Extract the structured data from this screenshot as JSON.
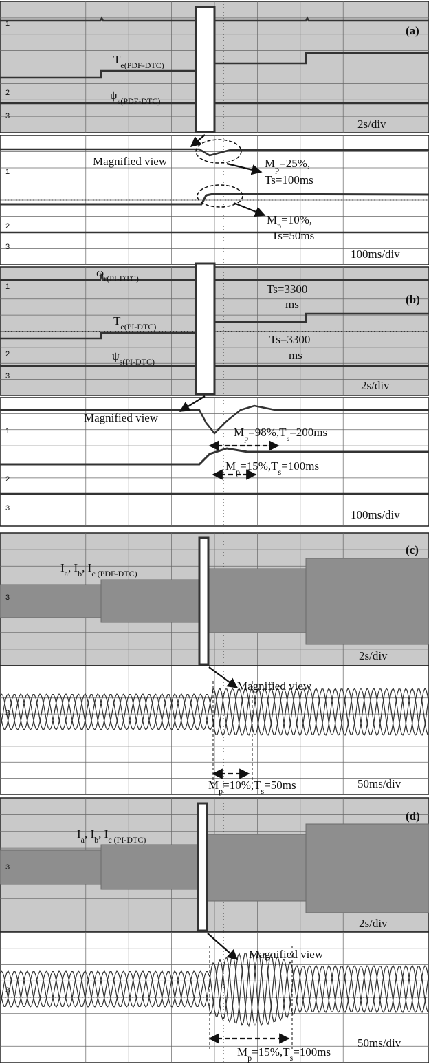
{
  "panels": [
    {
      "tag": "(a)",
      "top": {
        "channels": [
          "1",
          "2",
          "3"
        ],
        "scale": "2s/div",
        "labels": [
          [
            {
              "text": "T"
            },
            {
              "text": "e(PDF-DTC)",
              "sub": true
            }
          ],
          [
            {
              "text": "ψ"
            },
            {
              "text": "s(PDF-DTC)",
              "sub": true
            }
          ]
        ]
      },
      "bottom": {
        "channels": [
          "1",
          "2",
          "3"
        ],
        "scale": "100ms/div",
        "labels": [
          [
            {
              "text": "Magnified view"
            }
          ],
          [
            {
              "text": "M"
            },
            {
              "text": "p",
              "sub": true
            },
            {
              "text": "=25%,"
            }
          ],
          [
            {
              "text": "Ts=100ms"
            }
          ],
          [
            {
              "text": "M"
            },
            {
              "text": "p",
              "sub": true
            },
            {
              "text": "=10%,"
            }
          ],
          [
            {
              "text": "Ts=50ms"
            }
          ]
        ]
      }
    },
    {
      "tag": "(b)",
      "top": {
        "channels": [
          "1",
          "2",
          "3"
        ],
        "scale": "2s/div",
        "labels": [
          [
            {
              "text": "ω"
            },
            {
              "text": "r(PI-DTC)",
              "sub": true
            }
          ],
          [
            {
              "text": "Ts=3300"
            }
          ],
          [
            {
              "text": "ms"
            }
          ],
          [
            {
              "text": "T"
            },
            {
              "text": "e(PI-DTC)",
              "sub": true
            }
          ],
          [
            {
              "text": "Ts=3300"
            }
          ],
          [
            {
              "text": "ms"
            }
          ],
          [
            {
              "text": "ψ"
            },
            {
              "text": "s(PI-DTC)",
              "sub": true
            }
          ]
        ]
      },
      "bottom": {
        "channels": [
          "1",
          "2",
          "3"
        ],
        "scale": "100ms/div",
        "labels": [
          [
            {
              "text": "Magnified view"
            }
          ],
          [
            {
              "text": "M"
            },
            {
              "text": "p",
              "sub": true
            },
            {
              "text": "=98%,T"
            },
            {
              "text": "s",
              "sub": true
            },
            {
              "text": "=200ms"
            }
          ],
          [
            {
              "text": "M"
            },
            {
              "text": "p",
              "sub": true
            },
            {
              "text": "=15%,T"
            },
            {
              "text": "s",
              "sub": true
            },
            {
              "text": "=100ms"
            }
          ]
        ]
      }
    },
    {
      "tag": "(c)",
      "top": {
        "channels": [
          "3"
        ],
        "scale": "2s/div",
        "labels": [
          [
            {
              "text": "I"
            },
            {
              "text": "a",
              "sub": true
            },
            {
              "text": ", I"
            },
            {
              "text": "b",
              "sub": true
            },
            {
              "text": ", I"
            },
            {
              "text": "c (PDF-DTC)",
              "sub": true
            }
          ]
        ]
      },
      "bottom": {
        "channels": [
          "3"
        ],
        "scale": "50ms/div",
        "labels": [
          [
            {
              "text": "Magnified view"
            }
          ],
          [
            {
              "text": "M"
            },
            {
              "text": "p",
              "sub": true
            },
            {
              "text": "=10%,T"
            },
            {
              "text": "s",
              "sub": true
            },
            {
              "text": "=50ms"
            }
          ]
        ]
      }
    },
    {
      "tag": "(d)",
      "top": {
        "channels": [
          "3"
        ],
        "scale": "2s/div",
        "labels": [
          [
            {
              "text": "I"
            },
            {
              "text": "a",
              "sub": true
            },
            {
              "text": ", I"
            },
            {
              "text": "b",
              "sub": true
            },
            {
              "text": ", I"
            },
            {
              "text": "c (PI-DTC)",
              "sub": true
            }
          ]
        ]
      },
      "bottom": {
        "channels": [
          "3"
        ],
        "scale": "50ms/div",
        "labels": [
          [
            {
              "text": "Magnified view"
            }
          ],
          [
            {
              "text": "M"
            },
            {
              "text": "p",
              "sub": true
            },
            {
              "text": "=15%,T"
            },
            {
              "text": "s",
              "sub": true
            },
            {
              "text": "=100ms"
            }
          ]
        ]
      }
    }
  ]
}
